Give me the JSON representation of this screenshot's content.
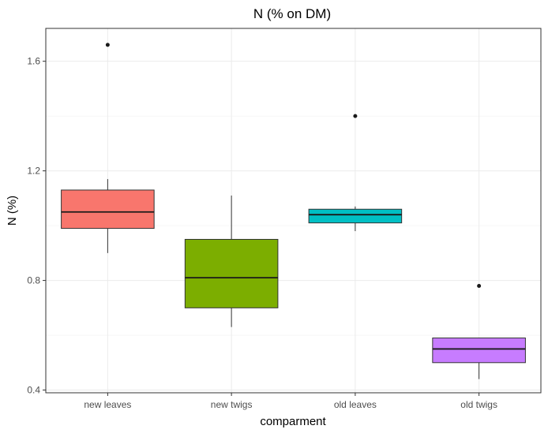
{
  "chart_data": {
    "type": "boxplot",
    "title": "N (% on DM)",
    "xlabel": "comparment",
    "ylabel": "N (%)",
    "ylim": [
      0.39,
      1.72
    ],
    "yticks": [
      0.4,
      0.8,
      1.2,
      1.6
    ],
    "ytick_labels": [
      "0.4",
      "0.8",
      "1.2",
      "1.6"
    ],
    "grid": true,
    "legend": "none",
    "categories": [
      "new leaves",
      "new twigs",
      "old leaves",
      "old twigs"
    ],
    "colors": [
      "#F8766D",
      "#7CAE00",
      "#00BFC4",
      "#C77CFF"
    ],
    "boxes": [
      {
        "category": "new leaves",
        "whisker_low": 0.9,
        "q1": 0.99,
        "median": 1.05,
        "q3": 1.13,
        "whisker_high": 1.17,
        "outliers": [
          1.66
        ]
      },
      {
        "category": "new twigs",
        "whisker_low": 0.63,
        "q1": 0.7,
        "median": 0.81,
        "q3": 0.95,
        "whisker_high": 1.11,
        "outliers": []
      },
      {
        "category": "old leaves",
        "whisker_low": 0.98,
        "q1": 1.01,
        "median": 1.04,
        "q3": 1.06,
        "whisker_high": 1.07,
        "outliers": [
          1.4
        ]
      },
      {
        "category": "old twigs",
        "whisker_low": 0.44,
        "q1": 0.5,
        "median": 0.55,
        "q3": 0.59,
        "whisker_high": 0.59,
        "outliers": [
          0.78
        ]
      }
    ]
  }
}
